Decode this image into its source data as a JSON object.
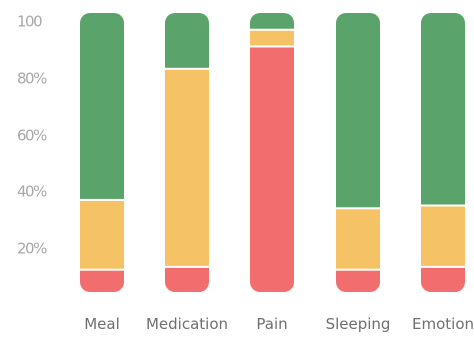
{
  "chart_data": {
    "type": "bar",
    "stacked": true,
    "normalized": true,
    "categories": [
      "Meal",
      "Medication",
      "Pain",
      "Sleeping",
      "Emotion"
    ],
    "series": [
      {
        "color": "#f26d6d",
        "values": [
          8,
          9,
          88,
          8,
          9
        ]
      },
      {
        "color": "#f5c365",
        "values": [
          25,
          71,
          6,
          22,
          22
        ]
      },
      {
        "color": "#5aa36b",
        "values": [
          67,
          20,
          6,
          70,
          69
        ]
      }
    ],
    "y_ticks": [
      "100",
      "80%",
      "60%",
      "40%",
      "20%"
    ],
    "ylim": [
      0,
      100
    ],
    "grid": false,
    "legend": "none"
  }
}
